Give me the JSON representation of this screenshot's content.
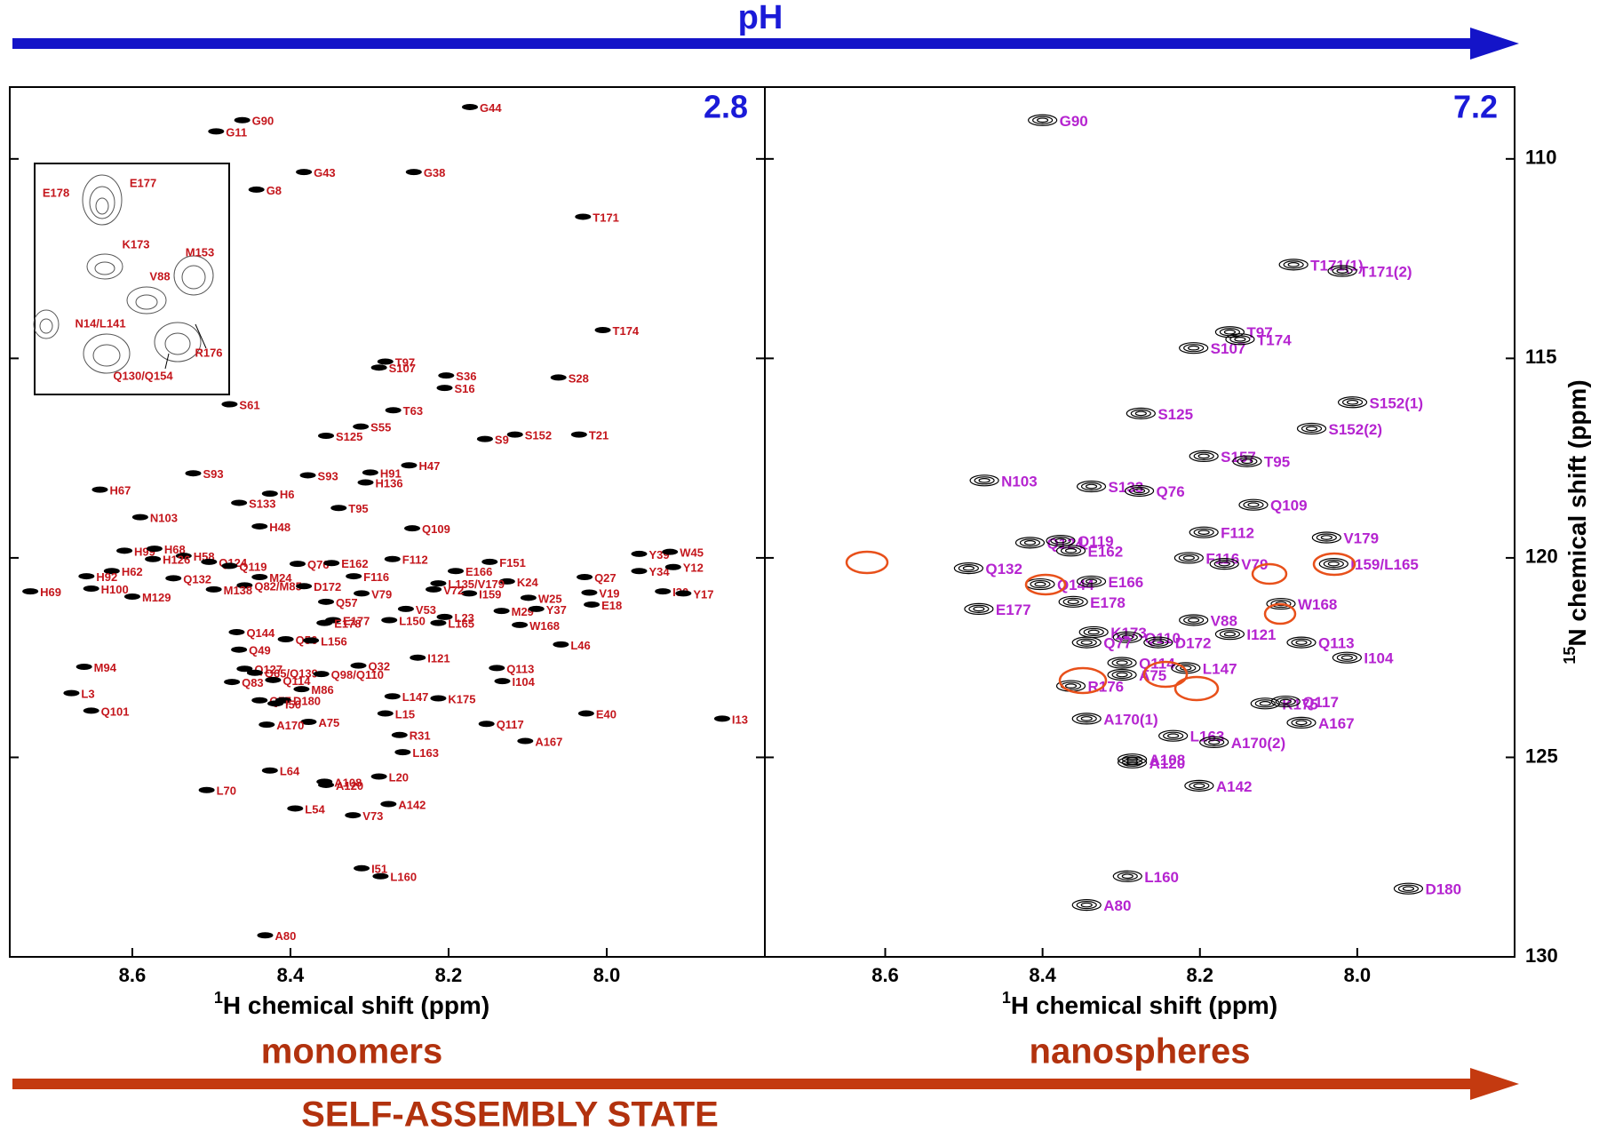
{
  "header": {
    "ph_label": "pH"
  },
  "footer": {
    "axis_label": "SELF-ASSEMBLY STATE"
  },
  "inset": {
    "labels": [
      "E178",
      "E177",
      "K173",
      "M153",
      "V88",
      "N14/L141",
      "R176",
      "Q130/Q154"
    ]
  },
  "chart_data": [
    {
      "type": "scatter",
      "condition": "2.8",
      "state": "monomers",
      "xlabel": {
        "sup": "1",
        "text": "H chemical shift (ppm)"
      },
      "xlim": [
        8.755,
        7.8
      ],
      "ylim": [
        108.2,
        130
      ],
      "xticks": [
        8.6,
        8.4,
        8.2,
        {
          "value": 8,
          "label": "8.0"
        }
      ],
      "yticks": [
        110,
        115,
        120,
        125,
        130
      ],
      "label_color": "#c4161c",
      "peak_color": "#000000",
      "labels": [
        "G90",
        "G11",
        "G44",
        "G43",
        "G38",
        "G8",
        "T171",
        "T174",
        "T97",
        "S36",
        "S107",
        "S16",
        "S28",
        "S61",
        "T63",
        "S125",
        "S55",
        "S9",
        "S152",
        "T21",
        "H91",
        "H47",
        "H136",
        "S93",
        "S93",
        "H6",
        "H67",
        "S133",
        "T95",
        "N103",
        "H48",
        "Q109",
        "H99",
        "H68",
        "H58",
        "H126",
        "H62",
        "H92",
        "H100",
        "H69",
        "M129",
        "Q124",
        "Q119",
        "Q132",
        "M24",
        "Q82/M85",
        "M138",
        "Q76",
        "E162",
        "F112",
        "D172",
        "F116",
        "E166",
        "F151",
        "K24",
        "L135/V179",
        "I159",
        "V72",
        "V79",
        "Q57",
        "V53",
        "L150",
        "L23",
        "L165",
        "M29",
        "W25",
        "Y37",
        "W168",
        "E177",
        "E178",
        "E18",
        "V19",
        "Q27",
        "Y39",
        "Y34",
        "W45",
        "Y12",
        "I30",
        "Y17",
        "Q144",
        "Q49",
        "Q56",
        "L156",
        "Q127",
        "Q65/Q139",
        "Q114",
        "Q98/Q110",
        "M86",
        "Q32",
        "I121",
        "L46",
        "Q113",
        "I104",
        "Q83",
        "M94",
        "L3",
        "Q77",
        "D180",
        "I50",
        "L147",
        "K175",
        "Q101",
        "A75",
        "L15",
        "E40",
        "I13",
        "Q117",
        "A167",
        "R31",
        "A170",
        "L163",
        "L64",
        "A108",
        "A120",
        "L20",
        "L70",
        "A142",
        "L54",
        "V73",
        "I51",
        "L160",
        "A80"
      ],
      "x": [
        8.461,
        8.494,
        8.173,
        8.383,
        8.244,
        8.443,
        8.03,
        8.005,
        8.28,
        8.203,
        8.288,
        8.205,
        8.061,
        8.477,
        8.27,
        8.355,
        8.311,
        8.154,
        8.116,
        8.035,
        8.299,
        8.25,
        8.305,
        8.523,
        8.378,
        8.426,
        8.641,
        8.465,
        8.339,
        8.59,
        8.439,
        8.246,
        8.61,
        8.572,
        8.535,
        8.574,
        8.626,
        8.658,
        8.652,
        8.729,
        8.6,
        8.503,
        8.477,
        8.548,
        8.439,
        8.458,
        8.497,
        8.391,
        8.348,
        8.271,
        8.383,
        8.32,
        8.191,
        8.148,
        8.126,
        8.213,
        8.174,
        8.219,
        8.31,
        8.355,
        8.254,
        8.275,
        8.205,
        8.213,
        8.133,
        8.099,
        8.089,
        8.11,
        8.346,
        8.357,
        8.019,
        8.022,
        8.028,
        7.959,
        7.959,
        7.92,
        7.916,
        7.929,
        7.903,
        8.468,
        8.465,
        8.406,
        8.374,
        8.458,
        8.445,
        8.422,
        8.361,
        8.386,
        8.314,
        8.239,
        8.058,
        8.139,
        8.132,
        8.474,
        8.661,
        8.677,
        8.439,
        8.409,
        8.419,
        8.271,
        8.213,
        8.652,
        8.377,
        8.28,
        8.026,
        7.854,
        8.152,
        8.103,
        8.262,
        8.43,
        8.258,
        8.426,
        8.357,
        8.355,
        8.288,
        8.506,
        8.276,
        8.394,
        8.321,
        8.31,
        8.286,
        8.432
      ],
      "values": [
        109.03,
        109.31,
        108.7,
        110.33,
        110.33,
        110.77,
        111.45,
        114.29,
        115.08,
        115.43,
        115.23,
        115.74,
        115.48,
        116.15,
        116.3,
        116.94,
        116.71,
        117.02,
        116.91,
        116.91,
        117.86,
        117.68,
        118.11,
        117.88,
        117.93,
        118.39,
        118.29,
        118.62,
        118.75,
        118.98,
        119.21,
        119.26,
        119.82,
        119.77,
        119.95,
        120.03,
        120.33,
        120.46,
        120.77,
        120.84,
        120.97,
        120.1,
        120.2,
        120.51,
        120.48,
        120.69,
        120.79,
        120.15,
        120.13,
        120.03,
        120.71,
        120.46,
        120.33,
        120.1,
        120.59,
        120.64,
        120.89,
        120.79,
        120.89,
        121.1,
        121.28,
        121.56,
        121.48,
        121.63,
        121.33,
        121.0,
        121.28,
        121.68,
        121.56,
        121.63,
        121.17,
        120.87,
        120.48,
        119.9,
        120.33,
        119.85,
        120.23,
        120.84,
        120.89,
        121.86,
        122.3,
        122.04,
        122.07,
        122.78,
        122.88,
        123.06,
        122.91,
        123.29,
        122.7,
        122.5,
        122.17,
        122.76,
        123.09,
        123.11,
        122.73,
        123.39,
        123.57,
        123.57,
        123.65,
        123.47,
        123.52,
        123.83,
        124.11,
        123.9,
        123.9,
        124.03,
        124.16,
        124.59,
        124.44,
        124.18,
        124.87,
        125.33,
        125.61,
        125.69,
        125.48,
        125.82,
        126.17,
        126.28,
        126.45,
        127.78,
        127.98,
        129.46
      ]
    },
    {
      "type": "scatter",
      "condition": "7.2",
      "state": "nanospheres",
      "xlabel": {
        "sup": "1",
        "text": "H chemical shift (ppm)"
      },
      "ylabel": {
        "sup": "15",
        "text": "N chemical shift (ppm)"
      },
      "xlim": [
        8.753,
        7.8
      ],
      "ylim": [
        108.2,
        130
      ],
      "xticks": [
        8.6,
        8.4,
        8.2,
        {
          "value": 8,
          "label": "8.0"
        }
      ],
      "yticks": [
        110,
        115,
        120,
        125,
        130
      ],
      "label_color": "#b524d0",
      "peak_color": "#000000",
      "labels": [
        "G90",
        "T171(1)",
        "T171(2)",
        "T97",
        "S107",
        "T174",
        "S152(1)",
        "S152(2)",
        "S125",
        "S157",
        "T95",
        "N103",
        "S133",
        "Q109",
        "Q76",
        "F112",
        "F116",
        "V179",
        "Q124",
        "Q119",
        "E162",
        "V79",
        "I159/L165",
        "Q132",
        "Q144",
        "E166",
        "E178",
        "W168",
        "V88",
        "E177",
        "K173",
        "Q110",
        "Q77",
        "D172",
        "I121",
        "Q113",
        "I104",
        "Q114",
        "A75",
        "L147",
        "R176",
        "K175",
        "Q117",
        "A170(1)",
        "A167",
        "L163",
        "A170(2)",
        "A108",
        "A120",
        "A142",
        "L160",
        "D180",
        "A80"
      ],
      "x": [
        8.4,
        8.081,
        8.019,
        8.162,
        8.208,
        8.149,
        8.006,
        8.058,
        8.275,
        8.195,
        8.14,
        8.474,
        8.338,
        8.132,
        8.277,
        8.195,
        8.214,
        8.039,
        8.416,
        8.377,
        8.364,
        8.169,
        8.03,
        8.494,
        8.403,
        8.338,
        8.361,
        8.097,
        8.208,
        8.481,
        8.335,
        8.292,
        8.344,
        8.253,
        8.162,
        8.071,
        8.013,
        8.299,
        8.299,
        8.218,
        8.364,
        8.117,
        8.091,
        8.344,
        8.071,
        8.234,
        8.182,
        8.286,
        8.286,
        8.201,
        8.292,
        7.935,
        8.344
      ],
      "values": [
        109.03,
        112.65,
        112.81,
        114.34,
        114.74,
        114.52,
        116.1,
        116.76,
        116.38,
        117.45,
        117.58,
        118.06,
        118.21,
        118.67,
        118.32,
        119.36,
        120.0,
        119.49,
        119.62,
        119.57,
        119.82,
        120.15,
        120.15,
        120.26,
        120.66,
        120.59,
        121.1,
        121.15,
        121.56,
        121.28,
        121.86,
        121.99,
        122.12,
        122.12,
        121.91,
        122.12,
        122.5,
        122.63,
        122.93,
        122.76,
        123.21,
        123.65,
        123.6,
        124.03,
        124.13,
        124.46,
        124.62,
        125.05,
        125.13,
        125.71,
        127.98,
        128.29,
        128.7
      ]
    }
  ]
}
